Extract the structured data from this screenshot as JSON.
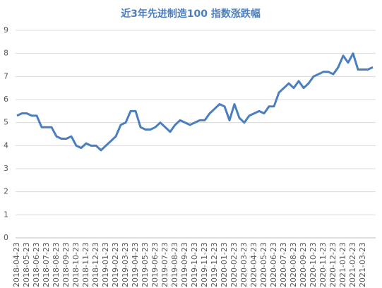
{
  "chart_data": {
    "type": "line",
    "title": "近3年先进制造100 指数涨跌幅",
    "categories": [
      "2018-04-23",
      null,
      "2018-05-23",
      null,
      "2018-06-23",
      null,
      "2018-07-23",
      null,
      "2018-08-23",
      null,
      "2018-09-23",
      null,
      "2018-10-23",
      null,
      "2018-11-23",
      null,
      "2018-12-23",
      null,
      "2019-01-23",
      null,
      "2019-02-23",
      null,
      "2019-03-23",
      null,
      "2019-04-23",
      null,
      "2019-05-23",
      null,
      "2019-06-23",
      null,
      "2019-07-23",
      null,
      "2019-08-23",
      null,
      "2019-09-23",
      null,
      "2019-10-23",
      null,
      "2019-11-23",
      null,
      "2019-12-23",
      null,
      "2020-01-23",
      null,
      "2020-02-23",
      null,
      "2020-03-23",
      null,
      "2020-04-23",
      null,
      "2020-05-23",
      null,
      "2020-06-23",
      null,
      "2020-07-23",
      null,
      "2020-08-23",
      null,
      "2020-09-23",
      null,
      "2020-10-23",
      null,
      "2020-11-23",
      null,
      "2020-12-23",
      null,
      "2021-01-23",
      null,
      "2021-02-23",
      null,
      "2021-03-23",
      null,
      null
    ],
    "series": [
      {
        "name": "先进制造100",
        "color": "#4a7ebf",
        "values": [
          5.3,
          5.4,
          5.4,
          5.3,
          5.3,
          4.8,
          4.8,
          4.8,
          4.4,
          4.3,
          4.3,
          4.4,
          4.0,
          3.9,
          4.1,
          4.0,
          4.0,
          3.8,
          4.0,
          4.2,
          4.4,
          4.9,
          5.0,
          5.5,
          5.5,
          4.8,
          4.7,
          4.7,
          4.8,
          5.0,
          4.8,
          4.6,
          4.9,
          5.1,
          5.0,
          4.9,
          5.0,
          5.1,
          5.1,
          5.4,
          5.6,
          5.8,
          5.7,
          5.1,
          5.8,
          5.2,
          5.0,
          5.3,
          5.4,
          5.5,
          5.4,
          5.7,
          5.7,
          6.3,
          6.5,
          6.7,
          6.5,
          6.8,
          6.5,
          6.7,
          7.0,
          7.1,
          7.2,
          7.2,
          7.1,
          7.4,
          7.9,
          7.6,
          8.0,
          7.3,
          7.3,
          7.3,
          7.4
        ]
      }
    ],
    "ylim": [
      0,
      9
    ],
    "yticks": [
      0,
      1,
      2,
      3,
      4,
      5,
      6,
      7,
      8,
      9
    ],
    "grid": true
  }
}
